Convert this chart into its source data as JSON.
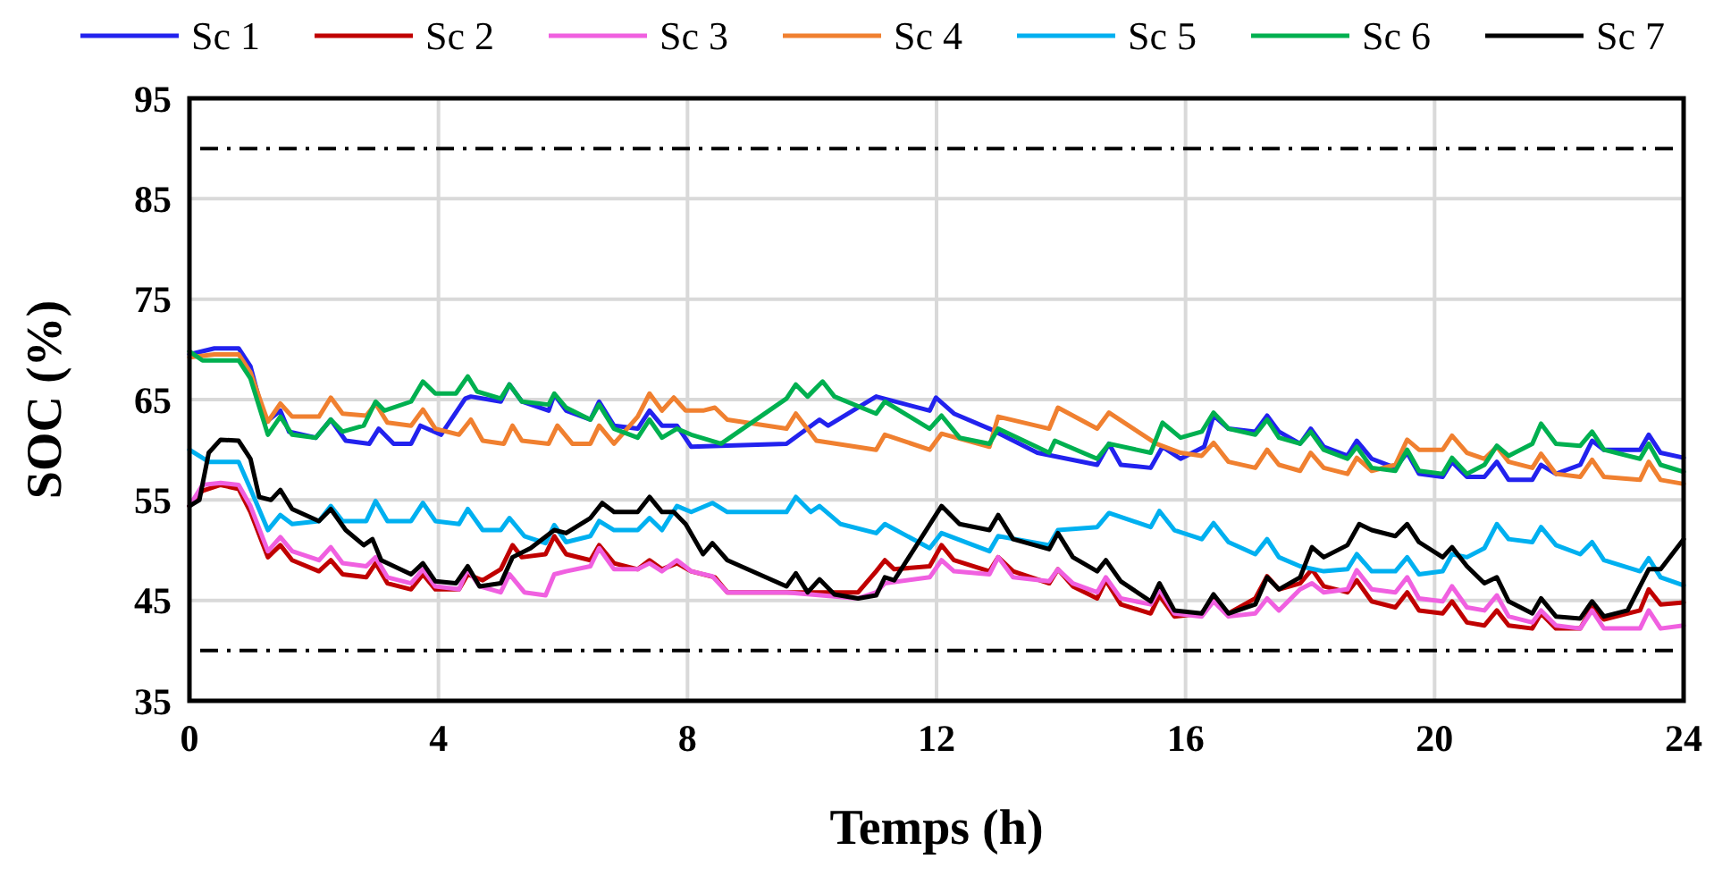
{
  "chart_data": {
    "type": "line",
    "xlabel": "Temps (h)",
    "ylabel": "SOC (%)",
    "xlim": [
      0,
      24
    ],
    "xticks": [
      0,
      4,
      8,
      12,
      16,
      20,
      24
    ],
    "ylim": [
      35,
      95
    ],
    "yticks": [
      35,
      45,
      55,
      65,
      75,
      85,
      95
    ],
    "grid": true,
    "legend": "top",
    "line_style": "solid",
    "ref_lines": [
      {
        "axis": "y",
        "value": 90,
        "color": "#000000",
        "line_style": "dashdot"
      },
      {
        "axis": "y",
        "value": 40,
        "color": "#000000",
        "line_style": "dashdot"
      }
    ],
    "series": [
      {
        "name": "Sc 1",
        "color": "#2222ee",
        "x": [
          0,
          0.4,
          0.79,
          0.98,
          1.22,
          1.46,
          1.6,
          2.03,
          2.27,
          2.51,
          2.89,
          3.04,
          3.28,
          3.56,
          3.71,
          4.04,
          4.43,
          4.52,
          5.0,
          5.14,
          5.34,
          5.77,
          5.86,
          6.05,
          6.44,
          6.58,
          6.82,
          7.2,
          7.39,
          7.59,
          7.83,
          8.06,
          9.59,
          10.12,
          10.26,
          11.03,
          11.89,
          11.99,
          12.28,
          12.85,
          13.62,
          14.58,
          14.77,
          14.96,
          15.44,
          15.63,
          15.92,
          16.3,
          16.45,
          16.69,
          17.12,
          17.31,
          17.5,
          17.84,
          18.01,
          18.22,
          18.6,
          18.75,
          18.99,
          19.37,
          19.56,
          19.75,
          20.13,
          20.28,
          20.52,
          20.8,
          21.0,
          21.19,
          21.57,
          21.71,
          21.95,
          22.34,
          22.53,
          22.72,
          23.3,
          23.44,
          23.63,
          24.0
        ],
        "values": [
          69.5,
          70.1,
          70.1,
          68.3,
          62.7,
          63.9,
          61.8,
          61.2,
          63.0,
          60.9,
          60.6,
          62.1,
          60.6,
          60.6,
          62.4,
          61.5,
          65.1,
          65.3,
          64.8,
          66.5,
          64.8,
          63.9,
          65.5,
          63.9,
          63.0,
          64.8,
          62.4,
          62.1,
          63.9,
          62.4,
          62.4,
          60.3,
          60.6,
          63.0,
          62.4,
          65.3,
          63.9,
          65.2,
          63.6,
          62.1,
          59.7,
          58.5,
          60.6,
          58.5,
          58.2,
          60.3,
          59.1,
          60.3,
          63.4,
          62.1,
          61.8,
          63.4,
          61.8,
          60.6,
          62.1,
          60.3,
          59.4,
          60.9,
          59.1,
          58.2,
          59.7,
          57.6,
          57.3,
          58.8,
          57.3,
          57.3,
          58.8,
          57.0,
          57.0,
          58.5,
          57.6,
          58.5,
          60.9,
          60.0,
          60.0,
          61.5,
          59.7,
          59.2
        ]
      },
      {
        "name": "Sc 2",
        "color": "#c00000",
        "x": [
          0,
          0.21,
          0.5,
          0.79,
          0.98,
          1.26,
          1.46,
          1.65,
          2.08,
          2.27,
          2.46,
          2.84,
          2.99,
          3.18,
          3.56,
          3.75,
          3.95,
          4.33,
          4.47,
          4.71,
          5.0,
          5.19,
          5.34,
          5.72,
          5.86,
          6.05,
          6.44,
          6.58,
          6.82,
          7.2,
          7.39,
          7.59,
          7.83,
          8.06,
          8.44,
          8.64,
          9.59,
          10.74,
          11.03,
          11.17,
          11.32,
          11.89,
          12.08,
          12.28,
          12.85,
          12.99,
          13.23,
          13.81,
          13.95,
          14.19,
          14.58,
          14.72,
          14.96,
          15.44,
          15.58,
          15.82,
          16.26,
          16.45,
          16.69,
          17.12,
          17.31,
          17.5,
          17.84,
          18.03,
          18.22,
          18.6,
          18.75,
          18.99,
          19.37,
          19.56,
          19.75,
          20.13,
          20.28,
          20.52,
          20.8,
          21.0,
          21.19,
          21.57,
          21.71,
          21.95,
          22.34,
          22.53,
          22.72,
          23.3,
          23.44,
          23.63,
          24.0
        ],
        "values": [
          54.4,
          55.9,
          56.5,
          56.1,
          53.8,
          49.3,
          50.5,
          49.0,
          47.9,
          49.0,
          47.6,
          47.3,
          48.7,
          46.7,
          46.1,
          47.6,
          46.1,
          46.1,
          47.6,
          47.0,
          48.1,
          50.5,
          49.3,
          49.6,
          51.4,
          49.6,
          49.0,
          50.5,
          48.7,
          48.1,
          49.0,
          48.1,
          48.7,
          47.9,
          47.3,
          45.8,
          45.8,
          45.8,
          47.9,
          49.0,
          48.1,
          48.4,
          50.5,
          49.0,
          47.9,
          49.3,
          47.9,
          46.7,
          48.1,
          46.4,
          45.2,
          47.0,
          44.6,
          43.7,
          45.5,
          43.4,
          43.7,
          45.2,
          43.7,
          45.2,
          47.4,
          46.1,
          46.7,
          48.1,
          46.4,
          45.8,
          47.0,
          44.9,
          44.3,
          45.8,
          44.0,
          43.7,
          44.9,
          42.8,
          42.5,
          44.0,
          42.5,
          42.2,
          43.7,
          42.2,
          42.2,
          44.3,
          43.1,
          44.0,
          46.1,
          44.6,
          44.8
        ]
      },
      {
        "name": "Sc 3",
        "color": "#f060e0",
        "x": [
          0,
          0.21,
          0.5,
          0.79,
          0.98,
          1.26,
          1.46,
          1.65,
          2.08,
          2.27,
          2.46,
          2.84,
          2.99,
          3.18,
          3.56,
          3.75,
          3.95,
          4.33,
          4.47,
          4.66,
          5.0,
          5.14,
          5.38,
          5.72,
          5.86,
          6.05,
          6.44,
          6.58,
          6.82,
          7.2,
          7.39,
          7.59,
          7.83,
          8.06,
          8.4,
          8.64,
          9.59,
          10.74,
          11.03,
          11.17,
          11.89,
          12.08,
          12.28,
          12.85,
          12.99,
          13.23,
          13.81,
          13.95,
          14.19,
          14.58,
          14.72,
          14.96,
          15.44,
          15.58,
          15.82,
          16.26,
          16.45,
          16.69,
          17.12,
          17.31,
          17.5,
          17.84,
          18.03,
          18.22,
          18.6,
          18.75,
          18.99,
          19.37,
          19.56,
          19.75,
          20.13,
          20.28,
          20.52,
          20.8,
          21.0,
          21.19,
          21.57,
          21.71,
          21.95,
          22.34,
          22.53,
          22.72,
          23.3,
          23.44,
          23.63,
          24.0
        ],
        "values": [
          54.4,
          56.5,
          56.7,
          56.5,
          54.4,
          49.9,
          51.3,
          49.9,
          49.0,
          50.3,
          48.7,
          48.4,
          49.3,
          47.3,
          46.7,
          48.1,
          46.4,
          46.1,
          48.1,
          46.4,
          45.8,
          47.6,
          45.8,
          45.5,
          47.6,
          47.9,
          48.4,
          50.2,
          48.1,
          48.1,
          48.7,
          47.9,
          49.0,
          47.9,
          47.4,
          45.8,
          45.8,
          45.2,
          45.8,
          46.7,
          47.3,
          49.0,
          47.9,
          47.6,
          49.3,
          47.3,
          46.9,
          48.1,
          46.7,
          45.8,
          47.3,
          45.2,
          44.6,
          46.1,
          43.7,
          43.4,
          44.9,
          43.4,
          43.7,
          45.2,
          44.0,
          46.1,
          46.7,
          45.8,
          46.1,
          48.0,
          46.1,
          45.8,
          47.3,
          45.2,
          44.9,
          46.4,
          44.3,
          44.0,
          45.5,
          43.4,
          42.8,
          44.0,
          42.5,
          42.2,
          44.0,
          42.2,
          42.2,
          44.0,
          42.2,
          42.5
        ]
      },
      {
        "name": "Sc 4",
        "color": "#f08030",
        "x": [
          0,
          0.4,
          0.79,
          0.98,
          1.26,
          1.46,
          1.65,
          2.08,
          2.27,
          2.46,
          2.84,
          2.99,
          3.18,
          3.56,
          3.75,
          3.95,
          4.33,
          4.52,
          4.71,
          5.05,
          5.19,
          5.34,
          5.77,
          5.91,
          6.15,
          6.44,
          6.58,
          6.82,
          7.2,
          7.39,
          7.59,
          7.78,
          7.97,
          8.25,
          8.44,
          8.64,
          9.59,
          9.74,
          10.07,
          11.03,
          11.17,
          11.89,
          12.08,
          12.85,
          12.99,
          13.81,
          13.95,
          14.58,
          14.77,
          15.53,
          15.92,
          16.26,
          16.45,
          16.69,
          17.12,
          17.31,
          17.5,
          17.84,
          18.01,
          18.22,
          18.6,
          18.75,
          18.99,
          19.37,
          19.56,
          19.75,
          20.13,
          20.28,
          20.52,
          20.8,
          21.0,
          21.19,
          21.57,
          21.71,
          21.95,
          22.34,
          22.53,
          22.72,
          23.3,
          23.44,
          23.63,
          24.0
        ],
        "values": [
          69.2,
          69.5,
          69.5,
          67.7,
          62.8,
          64.6,
          63.3,
          63.3,
          65.2,
          63.6,
          63.4,
          64.6,
          62.7,
          62.4,
          64.0,
          62.1,
          61.5,
          63.0,
          60.9,
          60.6,
          62.4,
          60.9,
          60.6,
          62.4,
          60.6,
          60.6,
          62.4,
          60.6,
          63.3,
          65.6,
          63.9,
          65.2,
          63.9,
          63.9,
          64.2,
          63.0,
          62.1,
          63.6,
          60.9,
          60.0,
          61.5,
          60.0,
          61.6,
          60.3,
          63.3,
          62.1,
          64.2,
          62.1,
          63.7,
          60.6,
          59.7,
          59.4,
          60.7,
          58.8,
          58.2,
          60.0,
          58.5,
          57.9,
          59.7,
          58.2,
          57.6,
          59.2,
          57.9,
          58.5,
          61.0,
          60.0,
          60.0,
          61.4,
          59.7,
          59.1,
          60.3,
          58.8,
          58.2,
          59.6,
          57.6,
          57.3,
          59.0,
          57.3,
          57.0,
          58.8,
          57.0,
          56.6
        ]
      },
      {
        "name": "Sc 5",
        "color": "#00b0f0",
        "x": [
          0,
          0.31,
          0.79,
          0.98,
          1.26,
          1.46,
          1.65,
          2.08,
          2.27,
          2.46,
          2.84,
          2.99,
          3.18,
          3.56,
          3.75,
          3.95,
          4.33,
          4.47,
          4.71,
          5.0,
          5.14,
          5.38,
          5.72,
          5.86,
          6.05,
          6.44,
          6.58,
          6.82,
          7.2,
          7.39,
          7.59,
          7.83,
          8.06,
          8.4,
          8.64,
          9.59,
          9.74,
          9.98,
          10.12,
          10.46,
          11.03,
          11.17,
          11.89,
          12.08,
          12.85,
          12.99,
          13.81,
          13.95,
          14.58,
          14.77,
          15.44,
          15.58,
          15.82,
          16.26,
          16.45,
          16.69,
          17.12,
          17.31,
          17.5,
          17.84,
          18.22,
          18.6,
          18.75,
          18.99,
          19.37,
          19.56,
          19.75,
          20.13,
          20.28,
          20.52,
          20.8,
          21.0,
          21.19,
          21.57,
          21.71,
          21.95,
          22.34,
          22.53,
          22.72,
          23.3,
          23.44,
          23.63,
          24.0
        ],
        "values": [
          60.0,
          58.8,
          58.8,
          56.1,
          52.0,
          53.5,
          52.6,
          52.9,
          54.4,
          52.9,
          52.9,
          54.9,
          52.9,
          52.9,
          54.7,
          52.9,
          52.6,
          54.1,
          52.0,
          52.0,
          53.2,
          51.4,
          50.7,
          52.5,
          50.8,
          51.4,
          52.9,
          52.0,
          52.0,
          53.2,
          52.0,
          54.4,
          53.8,
          54.7,
          53.8,
          53.8,
          55.3,
          53.8,
          54.4,
          52.6,
          51.7,
          52.6,
          50.2,
          51.7,
          49.9,
          51.4,
          50.5,
          52.0,
          52.3,
          53.7,
          52.3,
          53.9,
          52.0,
          51.1,
          52.7,
          50.8,
          49.6,
          51.1,
          49.3,
          48.4,
          47.9,
          48.1,
          49.6,
          47.9,
          47.9,
          49.3,
          47.6,
          47.9,
          49.6,
          49.3,
          50.2,
          52.6,
          51.1,
          50.8,
          52.3,
          50.5,
          49.6,
          50.8,
          49.0,
          47.9,
          49.2,
          47.3,
          46.5
        ]
      },
      {
        "name": "Sc 6",
        "color": "#00b050",
        "x": [
          0,
          0.21,
          0.79,
          0.98,
          1.26,
          1.46,
          1.65,
          2.03,
          2.27,
          2.46,
          2.8,
          2.99,
          3.13,
          3.56,
          3.75,
          3.95,
          4.28,
          4.47,
          4.62,
          5.0,
          5.14,
          5.34,
          5.77,
          5.86,
          6.05,
          6.44,
          6.58,
          6.82,
          7.2,
          7.39,
          7.59,
          7.83,
          8.06,
          8.54,
          9.59,
          9.74,
          9.93,
          10.17,
          10.36,
          11.03,
          11.17,
          11.89,
          12.08,
          12.37,
          12.85,
          12.99,
          13.81,
          13.9,
          14.58,
          14.77,
          15.44,
          15.63,
          15.92,
          16.26,
          16.45,
          16.69,
          17.12,
          17.31,
          17.5,
          17.84,
          18.01,
          18.22,
          18.6,
          18.75,
          18.99,
          19.37,
          19.56,
          19.75,
          20.13,
          20.28,
          20.52,
          20.8,
          21.0,
          21.19,
          21.57,
          21.71,
          21.95,
          22.34,
          22.53,
          22.72,
          23.3,
          23.44,
          23.63,
          24.0
        ],
        "values": [
          69.8,
          68.9,
          68.9,
          67.1,
          61.5,
          63.3,
          61.5,
          61.2,
          63.0,
          61.8,
          62.4,
          64.8,
          63.9,
          64.8,
          66.8,
          65.6,
          65.6,
          67.3,
          65.8,
          65.1,
          66.5,
          64.8,
          64.5,
          65.6,
          64.2,
          63.0,
          64.5,
          62.1,
          61.2,
          63.0,
          61.2,
          62.1,
          61.5,
          60.6,
          65.1,
          66.5,
          65.3,
          66.8,
          65.3,
          63.6,
          64.8,
          62.1,
          63.4,
          61.2,
          60.6,
          62.1,
          59.7,
          60.9,
          59.1,
          60.6,
          59.7,
          62.7,
          61.2,
          61.8,
          63.7,
          62.1,
          61.5,
          63.0,
          61.2,
          60.6,
          61.8,
          60.0,
          59.1,
          60.3,
          58.2,
          57.9,
          60.0,
          57.9,
          57.6,
          59.2,
          57.6,
          58.5,
          60.4,
          59.4,
          60.6,
          62.6,
          60.6,
          60.4,
          61.8,
          60.0,
          59.1,
          60.6,
          58.5,
          57.8
        ]
      },
      {
        "name": "Sc 7",
        "color": "#000000",
        "x": [
          0,
          0.16,
          0.31,
          0.5,
          0.79,
          0.98,
          1.12,
          1.31,
          1.46,
          1.65,
          2.08,
          2.27,
          2.51,
          2.8,
          2.94,
          3.08,
          3.56,
          3.75,
          3.95,
          4.28,
          4.47,
          4.66,
          5.0,
          5.19,
          5.48,
          5.86,
          6.05,
          6.44,
          6.63,
          6.82,
          7.2,
          7.39,
          7.59,
          7.78,
          7.97,
          8.25,
          8.4,
          8.64,
          9.59,
          9.74,
          9.93,
          10.12,
          10.36,
          10.74,
          11.03,
          11.17,
          11.32,
          12.08,
          12.37,
          12.85,
          12.99,
          13.23,
          13.81,
          13.95,
          14.19,
          14.58,
          14.72,
          14.96,
          15.44,
          15.58,
          15.82,
          16.26,
          16.45,
          16.69,
          17.12,
          17.31,
          17.5,
          17.84,
          18.03,
          18.22,
          18.6,
          18.79,
          18.99,
          19.37,
          19.56,
          19.75,
          20.13,
          20.28,
          20.52,
          20.8,
          21.0,
          21.19,
          21.57,
          21.71,
          21.95,
          22.34,
          22.53,
          22.72,
          23.1,
          23.44,
          23.63,
          24.0
        ],
        "values": [
          54.4,
          55.0,
          59.7,
          61.0,
          60.9,
          59.1,
          55.3,
          55.0,
          56.0,
          54.1,
          52.9,
          54.1,
          52.0,
          50.5,
          51.1,
          49.0,
          47.6,
          48.7,
          46.9,
          46.7,
          48.4,
          46.4,
          46.7,
          49.3,
          50.2,
          52.0,
          51.7,
          53.2,
          54.7,
          53.8,
          53.8,
          55.3,
          53.8,
          53.8,
          52.6,
          49.6,
          50.7,
          49.0,
          46.4,
          47.7,
          45.8,
          47.1,
          45.6,
          45.2,
          45.5,
          47.3,
          47.0,
          54.4,
          52.6,
          52.0,
          53.5,
          51.1,
          50.1,
          51.7,
          49.3,
          47.9,
          49.0,
          46.9,
          44.9,
          46.7,
          44.0,
          43.7,
          45.6,
          43.7,
          44.6,
          47.3,
          46.1,
          47.3,
          50.3,
          49.3,
          50.5,
          52.6,
          52.0,
          51.4,
          52.6,
          50.8,
          49.3,
          50.3,
          48.4,
          46.7,
          47.3,
          44.9,
          43.7,
          45.2,
          43.4,
          43.2,
          44.9,
          43.4,
          44.0,
          48.1,
          48.1,
          51.1
        ]
      }
    ]
  }
}
